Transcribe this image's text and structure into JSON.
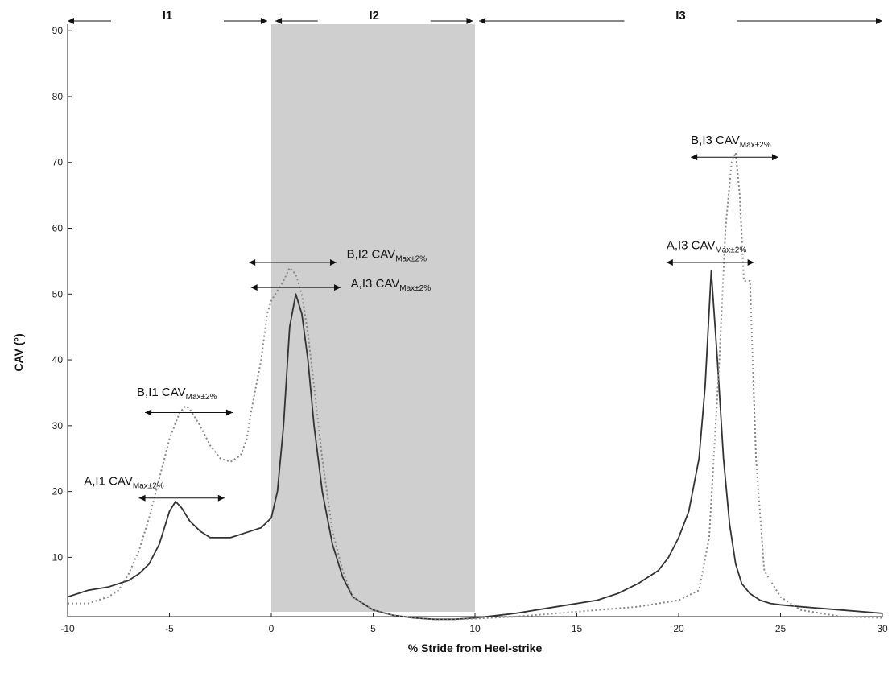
{
  "chart_data": {
    "type": "line",
    "title": "",
    "xlabel": "% Stride from Heel-strike",
    "ylabel": "CAV (°)",
    "xlim": [
      -10,
      30
    ],
    "ylim": [
      1,
      91
    ],
    "x_ticks": [
      -10,
      -5,
      0,
      5,
      10,
      15,
      20,
      25,
      30
    ],
    "x_tick_labels": [
      "-10",
      "-5",
      "0",
      "5",
      "10",
      "15",
      "20",
      "25",
      "30"
    ],
    "y_ticks": [
      10,
      20,
      30,
      40,
      50,
      60,
      70,
      80,
      90
    ],
    "y_tick_labels": [
      "10",
      "20",
      "30",
      "40",
      "50",
      "60",
      "70",
      "80",
      "90"
    ],
    "grid": false,
    "shaded_region": {
      "x0": 0,
      "x1": 10,
      "color": "#cfcfcf"
    },
    "intervals": [
      {
        "label": "I1",
        "x0": -10,
        "x1": -0.2
      },
      {
        "label": "I2",
        "x0": 0.2,
        "x1": 9.9
      },
      {
        "label": "I3",
        "x0": 10.2,
        "x1": 30
      }
    ],
    "series": [
      {
        "style": "solid",
        "color": "#333333",
        "x": [
          -10,
          -9,
          -8,
          -7,
          -6.5,
          -6,
          -5.5,
          -5,
          -4.7,
          -4.4,
          -4,
          -3.5,
          -3,
          -2.5,
          -2,
          -1.5,
          -1,
          -0.5,
          0,
          0.3,
          0.6,
          0.9,
          1.2,
          1.5,
          1.8,
          2.1,
          2.5,
          3,
          3.5,
          4,
          5,
          6,
          7,
          8,
          9,
          10,
          12,
          14,
          16,
          17,
          18,
          19,
          19.5,
          20,
          20.5,
          21,
          21.3,
          21.6,
          21.9,
          22.2,
          22.5,
          22.8,
          23.1,
          23.5,
          24,
          24.5,
          25,
          26,
          28,
          30
        ],
        "y": [
          4,
          5,
          5.5,
          6.5,
          7.5,
          9,
          12,
          17,
          18.5,
          17.5,
          15.5,
          14,
          13,
          13,
          13,
          13.5,
          14,
          14.5,
          16,
          20,
          30,
          45,
          50,
          47,
          40,
          30,
          20,
          12,
          7,
          4,
          2,
          1.2,
          0.8,
          0.6,
          0.6,
          0.8,
          1.5,
          2.5,
          3.5,
          4.5,
          6,
          8,
          10,
          13,
          17,
          25,
          36,
          53.5,
          40,
          25,
          15,
          9,
          6,
          4.5,
          3.5,
          3,
          2.8,
          2.5,
          2,
          1.5
        ]
      },
      {
        "style": "dotted",
        "color": "#888888",
        "x": [
          -10,
          -9,
          -8,
          -7.5,
          -7,
          -6.5,
          -6,
          -5.5,
          -5,
          -4.5,
          -4.2,
          -4,
          -3.5,
          -3,
          -2.5,
          -2,
          -1.5,
          -1.2,
          -1,
          -0.5,
          -0.2,
          0,
          0.3,
          0.6,
          0.9,
          1.2,
          1.5,
          1.8,
          2.1,
          2.5,
          3,
          3.5,
          4,
          5,
          6,
          7,
          8,
          9,
          10,
          12,
          14,
          16,
          18,
          19,
          20,
          21,
          21.5,
          22,
          22.3,
          22.6,
          22.8,
          23,
          23.2,
          23.5,
          23.8,
          24.2,
          25,
          26,
          28,
          30
        ],
        "y": [
          3,
          3,
          4,
          5,
          7.5,
          11,
          16,
          22,
          28,
          32,
          33,
          32.5,
          30,
          27,
          25,
          24.5,
          25.5,
          28,
          32,
          40,
          47,
          49,
          50.5,
          52,
          54,
          53,
          50,
          44,
          36,
          25,
          14,
          8,
          4,
          2,
          1.2,
          0.8,
          0.6,
          0.6,
          0.7,
          1,
          1.5,
          2,
          2.5,
          3,
          3.5,
          5,
          13,
          40,
          60,
          70,
          71.5,
          65,
          52,
          52,
          25,
          8,
          4,
          2,
          1,
          0.8
        ]
      }
    ],
    "annotations": [
      {
        "id": "a-i1",
        "prefix": "A,I1 CAV",
        "sub": "Max±2%",
        "x0": -6.5,
        "x1": -2.3,
        "y": 19,
        "label_x": -9.2,
        "label_y": 21
      },
      {
        "id": "b-i1",
        "prefix": "B,I1 CAV",
        "sub": "Max±2%",
        "x0": -6.2,
        "x1": -1.9,
        "y": 32,
        "label_x": -6.6,
        "label_y": 34.5
      },
      {
        "id": "b-i2",
        "prefix": "B,I2 CAV",
        "sub": "Max±2%",
        "x0": -1.1,
        "x1": 3.2,
        "y": 54.8,
        "label_x": 3.7,
        "label_y": 55.5
      },
      {
        "id": "a-i3-left",
        "prefix": "A,I3 CAV",
        "sub": "Max±2%",
        "x0": -1,
        "x1": 3.4,
        "y": 51,
        "label_x": 3.9,
        "label_y": 51
      },
      {
        "id": "a-i3-right",
        "prefix": "A,I3 CAV",
        "sub": "Max±2%",
        "x0": 19.4,
        "x1": 23.7,
        "y": 54.8,
        "label_x": 19.4,
        "label_y": 56.8
      },
      {
        "id": "b-i3",
        "prefix": "B,I3 CAV",
        "sub": "Max±2%",
        "x0": 20.6,
        "x1": 24.9,
        "y": 70.8,
        "label_x": 20.6,
        "label_y": 72.8
      }
    ]
  }
}
